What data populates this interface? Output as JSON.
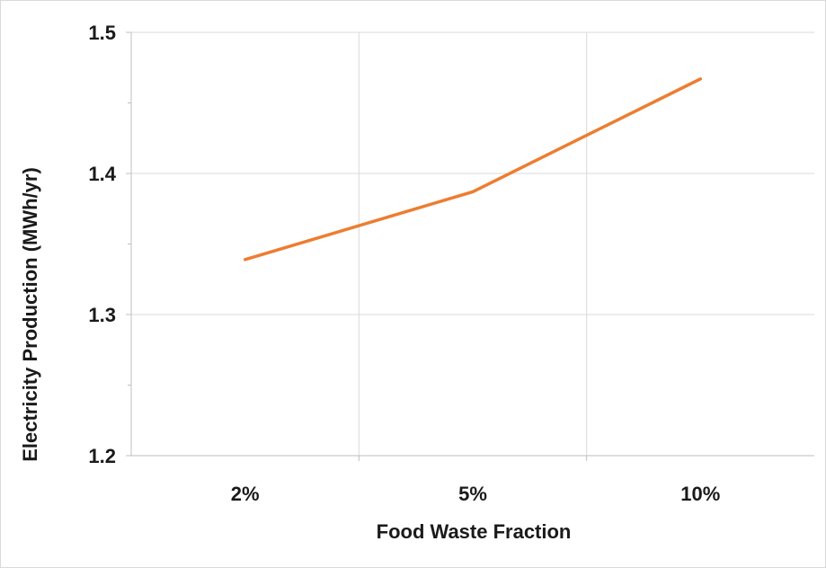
{
  "chart_data": {
    "type": "line",
    "title": "",
    "xlabel": "Food Waste Fraction",
    "ylabel": "Electricity Production (MWh/yr)",
    "categories": [
      "2%",
      "5%",
      "10%"
    ],
    "series": [
      {
        "values": [
          1.339,
          1.387,
          1.467
        ],
        "color": "#ED7D31"
      }
    ],
    "ylim": [
      1.2,
      1.5
    ],
    "y_major_ticks": [
      1.2,
      1.3,
      1.4,
      1.5
    ],
    "y_major_tick_labels": [
      "1.2",
      "1.3",
      "1.4",
      "1.5"
    ],
    "y_minor_ticks": [
      1.25,
      1.35,
      1.45
    ],
    "grid": true,
    "legend": "none",
    "colors": {
      "grid": "#d9d9d9",
      "axis": "#bfbfbf",
      "text": "#1a1a1a"
    }
  }
}
